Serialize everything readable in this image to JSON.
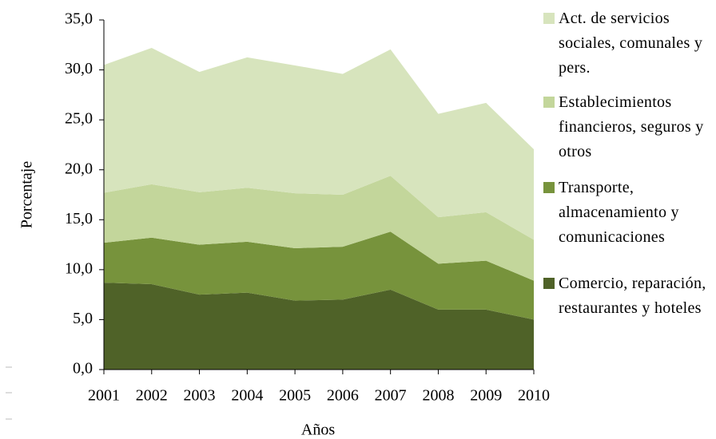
{
  "chart_data": {
    "type": "stacked-area",
    "x_label": "Años",
    "y_label": "Porcentaje",
    "categories": [
      "2001",
      "2002",
      "2003",
      "2004",
      "2005",
      "2006",
      "2007",
      "2008",
      "2009",
      "2010"
    ],
    "series": [
      {
        "name": "Comercio, reparación, restaurantes y hoteles",
        "color": "#4f6228",
        "values": [
          8.7,
          8.55,
          7.5,
          7.7,
          6.9,
          7.0,
          8.0,
          6.0,
          6.0,
          5.0
        ]
      },
      {
        "name": "Transporte, almacenamiento y comunicaciones",
        "color": "#77933c",
        "values": [
          4.0,
          4.65,
          5.0,
          5.1,
          5.25,
          5.3,
          5.8,
          4.6,
          4.9,
          3.9
        ]
      },
      {
        "name": "Establecimientos financieros, seguros y otros",
        "color": "#c3d69b",
        "values": [
          5.0,
          5.35,
          5.25,
          5.4,
          5.5,
          5.2,
          5.6,
          4.65,
          4.85,
          4.1
        ]
      },
      {
        "name": "Act. de servicios sociales, comunales y pers.",
        "color": "#d7e4bd",
        "values": [
          12.8,
          13.65,
          12.05,
          13.05,
          12.8,
          12.1,
          12.65,
          10.35,
          10.95,
          9.05
        ]
      }
    ],
    "ylim": [
      0,
      35
    ],
    "yticks": [
      {
        "value": 0,
        "label": "0,0"
      },
      {
        "value": 5,
        "label": "5,0"
      },
      {
        "value": 10,
        "label": "10,0"
      },
      {
        "value": 15,
        "label": "15,0"
      },
      {
        "value": 20,
        "label": "20,0"
      },
      {
        "value": 25,
        "label": "25,0"
      },
      {
        "value": 30,
        "label": "30,0"
      },
      {
        "value": 35,
        "label": "35,0"
      }
    ],
    "legend": "right"
  }
}
